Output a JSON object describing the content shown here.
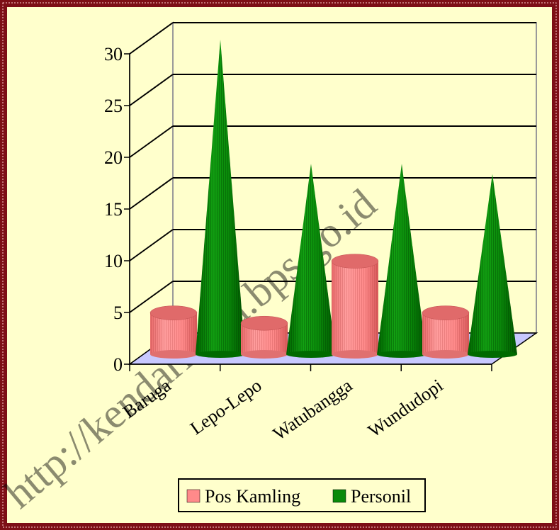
{
  "colors": {
    "frame": "#7d0f16",
    "background": "#ffffcc",
    "floor": "#c8c8ff",
    "pos_kamling": "#ff8a8a",
    "personil": "#0a8a0a",
    "grid": "#000000",
    "back_wall_edge": "#9a9a9a",
    "watermark": "#c0c0c0"
  },
  "watermark": "http://kendarikota.bps.go.id",
  "chart_data": {
    "type": "bar",
    "categories": [
      "Baruga",
      "Lepo-Lepo",
      "Watubangga",
      "Wundudopi"
    ],
    "series": [
      {
        "name": "Pos Kamling",
        "shape": "cylinder",
        "values": [
          4,
          3,
          9,
          4
        ]
      },
      {
        "name": "Personil",
        "shape": "cone",
        "values": [
          30,
          18,
          18,
          17
        ]
      }
    ],
    "y_ticks": [
      "0",
      "5",
      "10",
      "15",
      "20",
      "25",
      "30"
    ],
    "ylim": [
      0,
      30
    ],
    "grid": true,
    "legend_position": "bottom",
    "style": "3d"
  }
}
